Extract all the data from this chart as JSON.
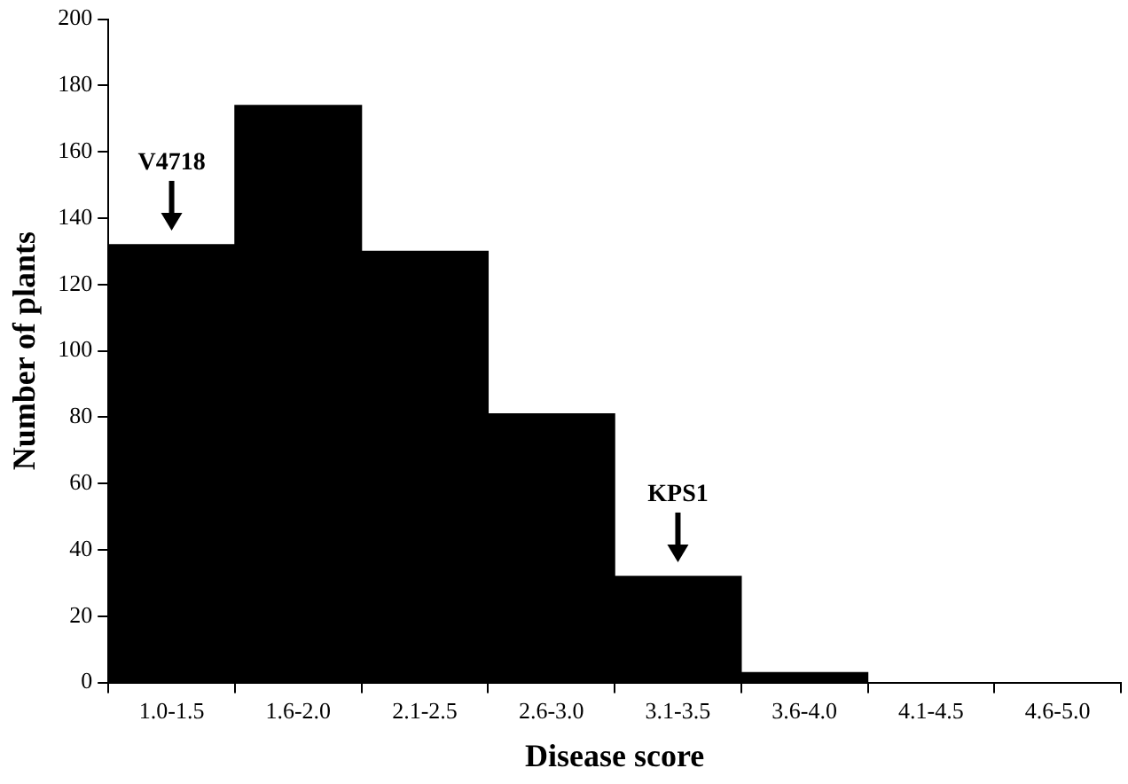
{
  "chart_data": {
    "type": "bar",
    "xlabel": "Disease score",
    "ylabel": "Number of plants",
    "categories": [
      "1.0-1.5",
      "1.6-2.0",
      "2.1-2.5",
      "2.6-3.0",
      "3.1-3.5",
      "3.6-4.0",
      "4.1-4.5",
      "4.6-5.0"
    ],
    "values": [
      132,
      174,
      130,
      81,
      32,
      3,
      0,
      0
    ],
    "color": "#000000",
    "ylim": [
      0,
      200
    ],
    "yticks": [
      0,
      20,
      40,
      60,
      80,
      100,
      120,
      140,
      160,
      180,
      200
    ],
    "grid": false,
    "legend": false,
    "annotations": [
      {
        "text": "V4718",
        "x": "1.0-1.5",
        "y": 132
      },
      {
        "text": "KPS1",
        "x": "3.1-3.5",
        "y": 32
      }
    ]
  }
}
